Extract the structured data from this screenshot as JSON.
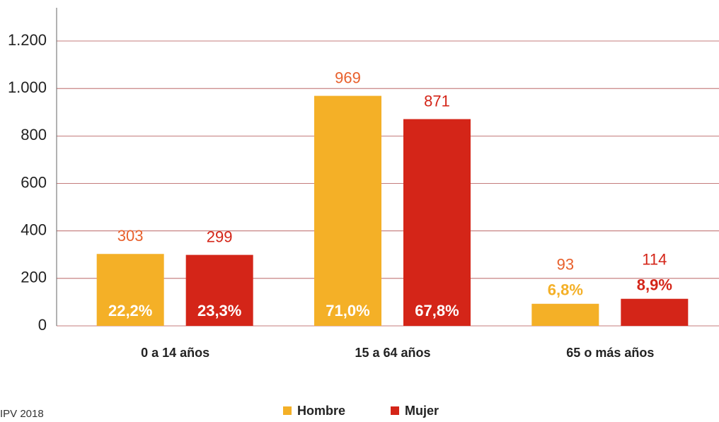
{
  "chart_data": {
    "type": "bar",
    "categories": [
      "0 a 14 años",
      "15 a 64 años",
      "65 o más años"
    ],
    "series": [
      {
        "name": "Hombre",
        "color": "#f4b027",
        "label_color": "#e8602c",
        "values": [
          303,
          969,
          93
        ],
        "percent_labels": [
          "22,2%",
          "71,0%",
          "6,8%"
        ]
      },
      {
        "name": "Mujer",
        "color": "#d42518",
        "label_color": "#d42518",
        "values": [
          299,
          871,
          114
        ],
        "percent_labels": [
          "23,3%",
          "67,8%",
          "8,9%"
        ]
      }
    ],
    "ylim": [
      0,
      1340
    ],
    "yticks": [
      0,
      200,
      400,
      600,
      800,
      {
        "value": 1000,
        "label": "1.000"
      },
      {
        "value": 1200,
        "label": "1.200"
      }
    ],
    "grid": true,
    "legend": "bottom",
    "source": "IPV 2018"
  }
}
